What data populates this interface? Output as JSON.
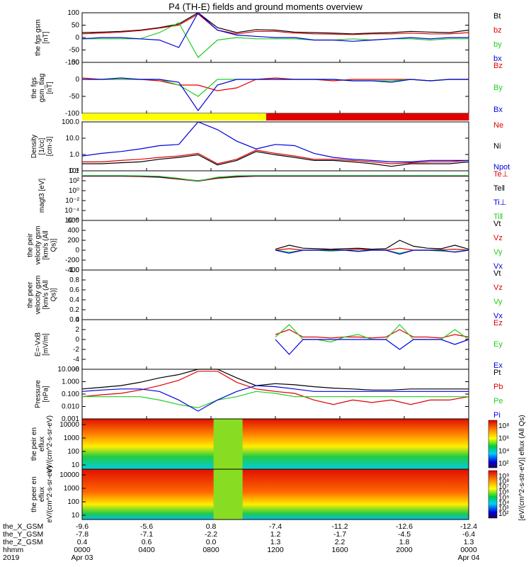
{
  "title": "P4 (TH-E) fields and ground moments overview",
  "colors": {
    "black": "#000000",
    "red": "#e00000",
    "green": "#22cc22",
    "blue": "#0000dd",
    "yellow": "#ffff00"
  },
  "chart_data": [
    {
      "type": "line",
      "ylabel": "the fgs gsm [nT]",
      "ylim": [
        -100,
        100
      ],
      "ticks": [
        "100",
        "50",
        "0",
        "-50",
        "-100"
      ],
      "series": [
        {
          "name": "Bt",
          "color": "black",
          "values": [
            20,
            22,
            25,
            30,
            40,
            55,
            100,
            40,
            20,
            32,
            30,
            22,
            20,
            18,
            15,
            18,
            20,
            25,
            22,
            20,
            30
          ]
        },
        {
          "name": "bz",
          "color": "red",
          "values": [
            15,
            18,
            22,
            28,
            38,
            50,
            95,
            30,
            15,
            25,
            25,
            18,
            15,
            14,
            12,
            15,
            15,
            18,
            15,
            15,
            20
          ]
        },
        {
          "name": "by",
          "color": "green",
          "values": [
            -5,
            -5,
            -5,
            -5,
            20,
            60,
            -80,
            -10,
            0,
            -5,
            -5,
            -5,
            -10,
            -10,
            -5,
            -10,
            -5,
            -5,
            -10,
            -5,
            -5
          ]
        },
        {
          "name": "bx",
          "color": "blue",
          "values": [
            -5,
            0,
            0,
            -5,
            -10,
            -40,
            100,
            30,
            10,
            5,
            0,
            0,
            -10,
            -10,
            -15,
            -10,
            -5,
            0,
            -5,
            0,
            0
          ]
        }
      ]
    },
    {
      "type": "line",
      "ylabel": "the fgs gsm_tlag [nT]",
      "ylim": [
        -120,
        60
      ],
      "ticks": [
        "50",
        "0",
        "-50",
        "-100"
      ],
      "series": [
        {
          "name": "Bz",
          "color": "red",
          "values": [
            5,
            0,
            0,
            0,
            -5,
            -20,
            -20,
            -40,
            -30,
            0,
            5,
            0,
            0,
            -5,
            0,
            0,
            0,
            0,
            -5,
            0,
            0
          ]
        },
        {
          "name": "By",
          "color": "green",
          "values": [
            0,
            0,
            0,
            0,
            0,
            -20,
            -60,
            0,
            0,
            0,
            0,
            0,
            0,
            0,
            -5,
            -5,
            -5,
            0,
            -5,
            0,
            0
          ]
        },
        {
          "name": "Bx",
          "color": "blue",
          "values": [
            0,
            0,
            5,
            0,
            0,
            -10,
            -110,
            -20,
            0,
            0,
            0,
            0,
            0,
            0,
            -5,
            -5,
            -10,
            0,
            -5,
            0,
            0
          ]
        }
      ]
    },
    {
      "type": "bar",
      "name": "mode bar",
      "values": [
        "yellow",
        "yellow",
        "yellow",
        "yellow",
        "yellow",
        "yellow",
        "yellow",
        "yellow",
        "yellow",
        "yellow",
        "red",
        "red",
        "red",
        "red",
        "red",
        "red",
        "red",
        "red",
        "red",
        "red",
        "red"
      ]
    },
    {
      "type": "line",
      "ylabel": "Density [1/cc] [cm-3]",
      "log": true,
      "ylim": [
        0.1,
        200
      ],
      "ticks": [
        "100.0",
        "10.0",
        "1.0",
        "0.1"
      ],
      "series": [
        {
          "name": "Ne",
          "color": "red",
          "values": [
            0.4,
            0.4,
            0.5,
            0.6,
            0.8,
            1,
            1.5,
            0.3,
            0.6,
            2.5,
            1.5,
            1,
            0.6,
            0.6,
            0.5,
            0.4,
            0.3,
            0.35,
            0.4,
            0.4,
            0.5
          ]
        },
        {
          "name": "Ni",
          "color": "black",
          "values": [
            0.3,
            0.3,
            0.35,
            0.4,
            0.6,
            0.8,
            1.2,
            0.25,
            0.5,
            2,
            1.2,
            0.8,
            0.5,
            0.5,
            0.4,
            0.3,
            0.2,
            0.3,
            0.3,
            0.3,
            0.4
          ]
        },
        {
          "name": "Npot",
          "color": "blue",
          "values": [
            1,
            1.5,
            2,
            3,
            5,
            6,
            200,
            60,
            10,
            3,
            6,
            5,
            1.5,
            0.8,
            0.6,
            0.5,
            0.4,
            0.4,
            0.5,
            0.5,
            0.5
          ]
        }
      ]
    },
    {
      "type": "line",
      "ylabel": "magt3 [eV]",
      "log": true,
      "ylim": [
        1e-06,
        10000
      ],
      "ticks": [
        "10⁴",
        "10²",
        "10⁰",
        "10⁻²",
        "10⁻⁴",
        "10⁻⁶"
      ],
      "series": [
        {
          "name": "Te⊥",
          "color": "red",
          "values": [
            800,
            800,
            800,
            700,
            500,
            200,
            80,
            300,
            600,
            800,
            800,
            800,
            800,
            800,
            800,
            800,
            800,
            800,
            800,
            800,
            800
          ]
        },
        {
          "name": "Te‖",
          "color": "black",
          "values": [
            900,
            900,
            900,
            800,
            600,
            250,
            100,
            400,
            700,
            900,
            900,
            900,
            900,
            900,
            900,
            900,
            900,
            900,
            900,
            900,
            900
          ]
        },
        {
          "name": "Ti⊥",
          "color": "blue",
          "values": [
            1000,
            1000,
            1000,
            900,
            700,
            300,
            80,
            500,
            900,
            1000,
            1000,
            1000,
            1000,
            1000,
            1000,
            1000,
            1000,
            1000,
            1000,
            1000,
            1000
          ]
        },
        {
          "name": "Ti‖",
          "color": "green",
          "values": [
            1100,
            1100,
            1100,
            1000,
            800,
            300,
            90,
            500,
            1000,
            1100,
            1100,
            1100,
            1100,
            1100,
            1100,
            1100,
            1100,
            1100,
            1100,
            1100,
            1100
          ]
        }
      ]
    },
    {
      "type": "line",
      "ylabel": "the peir velocity gsm [km/s (All Qs)]",
      "ylim": [
        -400,
        600
      ],
      "ticks": [
        "600",
        "400",
        "200",
        "0",
        "-200",
        "-400"
      ],
      "x_start": 0.5,
      "series": [
        {
          "name": "Vt",
          "color": "black",
          "values": [
            20,
            100,
            40,
            30,
            20,
            30,
            40,
            20,
            30,
            200,
            80,
            40,
            30,
            100,
            20
          ]
        },
        {
          "name": "Vz",
          "color": "red",
          "values": [
            0,
            30,
            0,
            0,
            10,
            0,
            20,
            0,
            0,
            40,
            0,
            0,
            10,
            20,
            0
          ]
        },
        {
          "name": "Vy",
          "color": "green",
          "values": [
            0,
            -40,
            0,
            0,
            -20,
            0,
            -30,
            0,
            0,
            -60,
            0,
            0,
            -20,
            -30,
            0
          ]
        },
        {
          "name": "Vx",
          "color": "blue",
          "values": [
            0,
            -60,
            0,
            0,
            0,
            0,
            -20,
            0,
            0,
            -80,
            0,
            0,
            0,
            -40,
            0
          ]
        }
      ]
    },
    {
      "type": "line",
      "ylabel": "the peer velocity gsm [km/s (All Qs)]",
      "ylim": [
        0,
        1
      ],
      "ticks": [
        "1.0",
        "0.8",
        "0.6",
        "0.4",
        "0.2",
        "0.0"
      ],
      "series": [
        {
          "name": "Vt",
          "color": "black",
          "values": []
        },
        {
          "name": "Vz",
          "color": "red",
          "values": []
        },
        {
          "name": "Vy",
          "color": "green",
          "values": []
        },
        {
          "name": "Vx",
          "color": "blue",
          "values": []
        }
      ]
    },
    {
      "type": "line",
      "ylabel": "E=-VxB [mV/m]",
      "ylim": [
        -6,
        4
      ],
      "ticks": [
        "4",
        "2",
        "0",
        "-2",
        "-4",
        "-6"
      ],
      "x_start": 0.5,
      "series": [
        {
          "name": "Ez",
          "color": "red",
          "values": [
            1,
            2,
            0.5,
            0.5,
            0.3,
            0.5,
            0.5,
            0.3,
            0.5,
            2,
            0.5,
            0.5,
            0.3,
            1,
            0.5
          ]
        },
        {
          "name": "Ey",
          "color": "green",
          "values": [
            0.5,
            3,
            0,
            0,
            -0.5,
            0.5,
            1,
            0,
            0,
            3,
            0,
            0,
            0,
            2,
            0
          ]
        },
        {
          "name": "Ex",
          "color": "blue",
          "values": [
            0,
            -3,
            0,
            0,
            0,
            0,
            0,
            0,
            0,
            -2,
            0,
            0,
            0,
            -1,
            0
          ]
        }
      ]
    },
    {
      "type": "line",
      "ylabel": "Pressure [nPa]",
      "log": true,
      "ylim": [
        0.001,
        30
      ],
      "ticks": [
        "10.000",
        "1.000",
        "0.100",
        "0.010",
        "0.001"
      ],
      "series": [
        {
          "name": "Pt",
          "color": "black",
          "values": [
            0.5,
            0.7,
            1,
            2,
            5,
            10,
            30,
            30,
            5,
            1,
            1.5,
            1.2,
            0.8,
            0.6,
            0.5,
            0.4,
            0.4,
            0.5,
            0.5,
            0.5,
            0.5
          ]
        },
        {
          "name": "Pb",
          "color": "red",
          "values": [
            0.1,
            0.15,
            0.2,
            0.4,
            1,
            3,
            20,
            20,
            2,
            0.5,
            0.3,
            0.2,
            0.05,
            0.02,
            0.05,
            0.03,
            0.05,
            0.02,
            0.05,
            0.05,
            0.1
          ]
        },
        {
          "name": "Pe",
          "color": "green",
          "values": [
            0.1,
            0.1,
            0.1,
            0.1,
            0.05,
            0.02,
            0.01,
            0.05,
            0.1,
            0.3,
            0.2,
            0.1,
            0.1,
            0.1,
            0.1,
            0.1,
            0.1,
            0.1,
            0.1,
            0.1,
            0.1
          ]
        },
        {
          "name": "Pi",
          "color": "blue",
          "values": [
            0.3,
            0.4,
            0.5,
            0.5,
            0.3,
            0.05,
            0.005,
            0.05,
            0.3,
            1,
            0.8,
            0.5,
            0.3,
            0.3,
            0.3,
            0.3,
            0.3,
            0.3,
            0.3,
            0.3,
            0.3
          ]
        }
      ]
    },
    {
      "type": "heatmap",
      "ylabel": "the peir en eflux eV/(cm^2-s-sr-eV)",
      "ticks": [
        "10000",
        "1000",
        "100",
        "10"
      ],
      "colorbar_ticks": [
        "10⁸",
        "10⁶",
        "10⁴",
        "10²"
      ]
    },
    {
      "type": "heatmap",
      "ylabel": "the peer en eflux eV/(cm^2-s-sr-eV)",
      "ticks": [
        "10000",
        "1000",
        "100",
        "10"
      ],
      "colorbar_ticks": [
        "10⁹",
        "10⁸",
        "10⁷",
        "10⁶",
        "10⁵",
        "10⁴",
        "10³",
        "10²"
      ]
    }
  ],
  "colorbar_label": "[eV/(cm^2-s-str-eV)] eflux (All Qs)",
  "bottom": {
    "row_labels": [
      "the_X_GSM",
      "the_Y_GSM",
      "the_Z_GSM",
      "hhmm",
      "2019"
    ],
    "columns": [
      [
        "-9.6",
        "-7.8",
        "0.4",
        "0000",
        "Apr 03"
      ],
      [
        "-5.6",
        "-7.1",
        "0.6",
        "0400",
        ""
      ],
      [
        "0.8",
        "-2.2",
        "0.0",
        "0800",
        ""
      ],
      [
        "-7.4",
        "1.2",
        "1.3",
        "1200",
        ""
      ],
      [
        "-11.2",
        "-1.7",
        "2.2",
        "1600",
        ""
      ],
      [
        "-12.6",
        "-4.5",
        "1.8",
        "2000",
        ""
      ],
      [
        "-12.4",
        "-6.4",
        "1.3",
        "0000",
        "Apr 04"
      ]
    ]
  }
}
